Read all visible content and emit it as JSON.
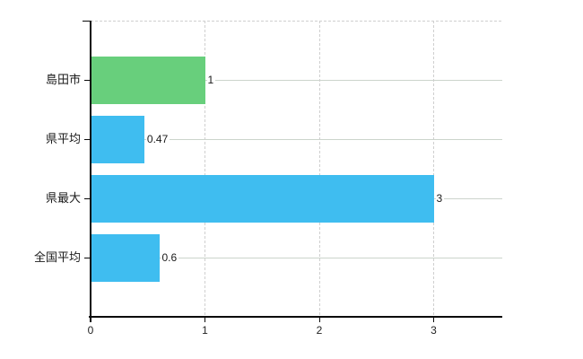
{
  "chart_data": {
    "type": "bar",
    "orientation": "horizontal",
    "title": "",
    "xlabel": "",
    "ylabel": "",
    "categories": [
      "島田市",
      "県平均",
      "県最大",
      "全国平均"
    ],
    "values": [
      1,
      0.47,
      3,
      0.6
    ],
    "value_labels": [
      "1",
      "0.47",
      "3",
      "0.6"
    ],
    "series": [
      {
        "name": "",
        "values": [
          1,
          0.47,
          3,
          0.6
        ]
      }
    ],
    "bar_colors": [
      "#68cf7c",
      "#3fbdf0",
      "#3fbdf0",
      "#3fbdf0"
    ],
    "x_ticks": [
      0,
      1,
      2,
      3
    ],
    "x_tick_labels": [
      "0",
      "1",
      "2",
      "3"
    ],
    "xlim": [
      0,
      3.6
    ],
    "grid": {
      "vertical": "dashed",
      "horizontal": "solid",
      "top_border": "dashed"
    },
    "legend": "none",
    "colors": {
      "green_bar": "#68cf7c",
      "blue_bar": "#3fbdf0",
      "axis": "#0a0a0a",
      "grid_horizontal": "#ccd4cc",
      "grid_dashed": "#cfcfcf",
      "text": "#1a1a1a",
      "background": "#ffffff"
    }
  }
}
